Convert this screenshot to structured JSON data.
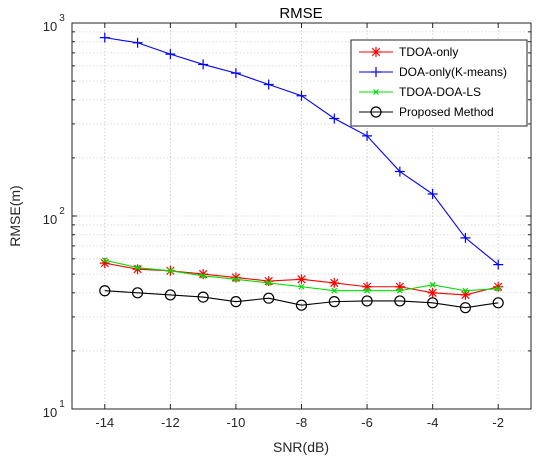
{
  "chart_data": {
    "type": "line",
    "title": "RMSE",
    "xlabel": "SNR(dB)",
    "ylabel": "RMSE(m)",
    "x": [
      -14,
      -13,
      -12,
      -11,
      -10,
      -9,
      -8,
      -7,
      -6,
      -5,
      -4,
      -3,
      -2
    ],
    "xlim": [
      -15,
      -1
    ],
    "ylim": [
      10,
      1000
    ],
    "yscale": "log",
    "grid": true,
    "legend_position": "top-right",
    "xticks": [
      -14,
      -12,
      -10,
      -8,
      -6,
      -4,
      -2
    ],
    "xtick_labels": [
      "-14",
      "-12",
      "-10",
      "-8",
      "-6",
      "-4",
      "-2"
    ],
    "yticks": [
      {
        "value": 10,
        "base": "10",
        "exp": "1"
      },
      {
        "value": 100,
        "base": "10",
        "exp": "2"
      },
      {
        "value": 1000,
        "base": "10",
        "exp": "3"
      }
    ],
    "series": [
      {
        "name": "TDOA-only",
        "color": "#ff0000",
        "marker": "asterisk",
        "values": [
          57,
          53,
          52,
          50,
          48,
          46,
          47,
          45,
          43,
          43,
          40,
          39,
          43
        ]
      },
      {
        "name": "DOA-only(K-means)",
        "color": "#0000ff",
        "marker": "plus",
        "values": [
          840,
          790,
          690,
          610,
          550,
          480,
          420,
          320,
          260,
          170,
          130,
          77,
          56
        ]
      },
      {
        "name": "TDOA-DOA-LS",
        "color": "#00dd00",
        "marker": "cross",
        "values": [
          59,
          54,
          52,
          49,
          47,
          45,
          43,
          41,
          41,
          41,
          44,
          41,
          42
        ]
      },
      {
        "name": "Proposed Method",
        "color": "#000000",
        "marker": "circle",
        "values": [
          41,
          40,
          39,
          38,
          36,
          37.5,
          34.5,
          36,
          36.3,
          36.3,
          35.5,
          33.5,
          35.5
        ]
      }
    ]
  }
}
